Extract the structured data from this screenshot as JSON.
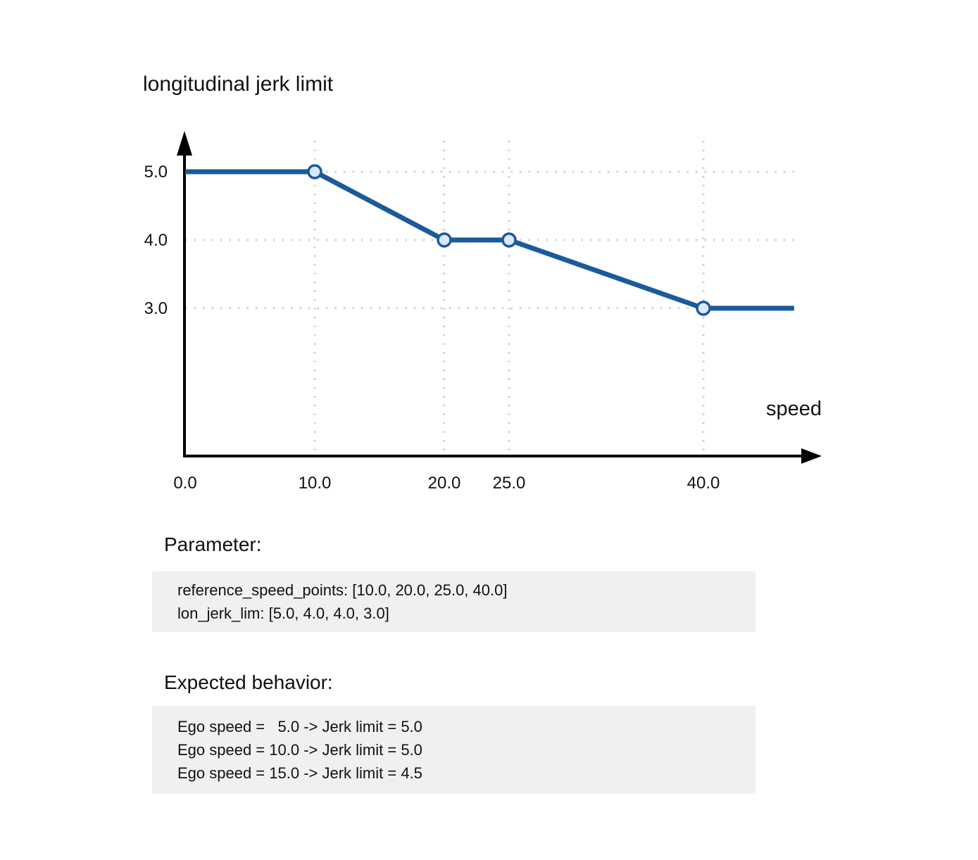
{
  "chart_data": {
    "type": "line",
    "title": "longitudinal jerk limit",
    "xlabel": "speed",
    "ylabel": "",
    "x_tick_values": [
      0,
      10,
      20,
      25,
      40
    ],
    "x_tick_labels": [
      "0.0",
      "10.0",
      "20.0",
      "25.0",
      "40.0"
    ],
    "y_tick_values": [
      5,
      4,
      3
    ],
    "y_tick_labels": [
      "5.0",
      "4.0",
      "3.0"
    ],
    "x_range": [
      0,
      49
    ],
    "y_range": [
      0,
      5.6
    ],
    "grid": "dotted",
    "reference_speed_points": [
      10.0,
      20.0,
      25.0,
      40.0
    ],
    "lon_jerk_lim": [
      5.0,
      4.0,
      4.0,
      3.0
    ],
    "line_x": [
      0,
      10,
      20,
      25,
      40,
      47
    ],
    "line_y": [
      5.0,
      5.0,
      4.0,
      4.0,
      3.0,
      3.0
    ],
    "line_color": "#1b5a9b",
    "marker_fill": "#dae8fc",
    "grid_color": "#d0d0d0",
    "axis_color": "#000000",
    "text_color": "#111111"
  },
  "sections": {
    "parameter": {
      "heading": "Parameter:",
      "lines": [
        "reference_speed_points: [10.0, 20.0, 25.0, 40.0]",
        "lon_jerk_lim: [5.0, 4.0, 4.0, 3.0]"
      ]
    },
    "expected_behavior": {
      "heading": "Expected behavior:",
      "lines": [
        "Ego speed =   5.0 -> Jerk limit = 5.0",
        "Ego speed = 10.0 -> Jerk limit = 5.0",
        "Ego speed = 15.0 -> Jerk limit = 4.5"
      ]
    }
  }
}
